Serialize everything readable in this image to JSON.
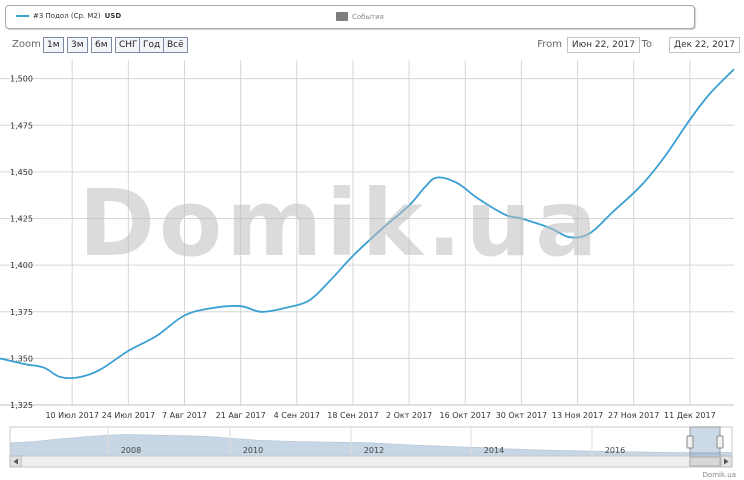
{
  "legend": {
    "series_label": "#3 Подол (Ср. М2)",
    "series_unit": "USD",
    "events_label": "События"
  },
  "range_selector": {
    "zoom_label": "Zoom",
    "buttons": [
      "1м",
      "3м",
      "6м",
      "СНГ",
      "Год",
      "Всё"
    ],
    "from_label": "From",
    "from_value": "Июн 22, 2017",
    "to_label": "To",
    "to_value": "Дек 22, 2017"
  },
  "watermark": "Domik.ua",
  "credit": "Domik.ua",
  "colors": {
    "series": "#3a9fd2",
    "events": "#7d7d7d",
    "grid": "#d6d6d6",
    "navigator_fill": "#c7d6e4"
  },
  "navigator": {
    "year_labels": [
      "2008",
      "2010",
      "2012",
      "2014",
      "2016"
    ]
  },
  "chart_data": {
    "type": "line",
    "title": "",
    "xlabel": "",
    "ylabel": "",
    "ylim": [
      1.325,
      1.51
    ],
    "y_ticks": [
      1.325,
      1.35,
      1.375,
      1.4,
      1.425,
      1.45,
      1.475,
      1.5
    ],
    "y_tick_labels": [
      "1,325",
      "1,350",
      "1,375",
      "1,400",
      "1,425",
      "1,450",
      "1,475",
      "1,500"
    ],
    "x_range": [
      "2017-06-22",
      "2017-12-22"
    ],
    "x_ticks": [
      "2017-07-10",
      "2017-07-24",
      "2017-08-07",
      "2017-08-21",
      "2017-09-04",
      "2017-09-18",
      "2017-10-02",
      "2017-10-16",
      "2017-10-30",
      "2017-11-13",
      "2017-11-27",
      "2017-12-11"
    ],
    "x_tick_labels": [
      "10 Июл 2017",
      "24 Июл 2017",
      "7 Авг 2017",
      "21 Авг 2017",
      "4 Сен 2017",
      "18 Сен 2017",
      "2 Окт 2017",
      "16 Окт 2017",
      "30 Окт 2017",
      "13 Ноя 2017",
      "27 Ноя 2017",
      "11 Дек 2017"
    ],
    "grid": true,
    "legend": "top",
    "series": [
      {
        "name": "#3 Подол (Ср. М2)",
        "x": [
          "2017-06-22",
          "2017-06-28",
          "2017-07-03",
          "2017-07-07",
          "2017-07-12",
          "2017-07-17",
          "2017-07-24",
          "2017-07-31",
          "2017-08-07",
          "2017-08-14",
          "2017-08-21",
          "2017-08-26",
          "2017-09-01",
          "2017-09-07",
          "2017-09-12",
          "2017-09-18",
          "2017-09-25",
          "2017-10-02",
          "2017-10-06",
          "2017-10-09",
          "2017-10-14",
          "2017-10-19",
          "2017-10-26",
          "2017-10-30",
          "2017-11-06",
          "2017-11-11",
          "2017-11-16",
          "2017-11-22",
          "2017-11-29",
          "2017-12-05",
          "2017-12-11",
          "2017-12-16",
          "2017-12-22"
        ],
        "y": [
          1.35,
          1.347,
          1.345,
          1.34,
          1.34,
          1.344,
          1.354,
          1.362,
          1.373,
          1.377,
          1.378,
          1.375,
          1.377,
          1.381,
          1.391,
          1.405,
          1.419,
          1.432,
          1.442,
          1.447,
          1.444,
          1.436,
          1.427,
          1.425,
          1.42,
          1.415,
          1.417,
          1.429,
          1.443,
          1.459,
          1.478,
          1.492,
          1.505
        ]
      }
    ]
  }
}
